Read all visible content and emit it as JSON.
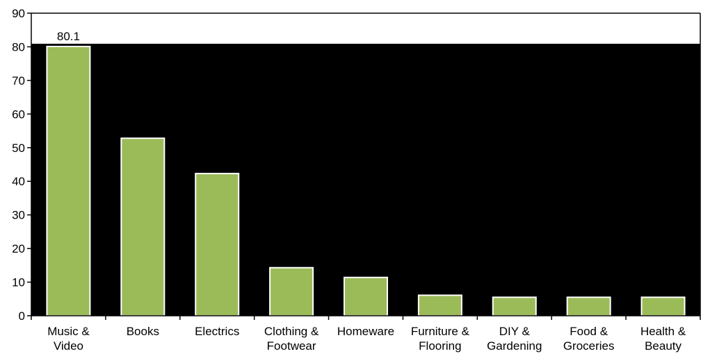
{
  "chart_data": {
    "type": "bar",
    "categories": [
      [
        "Music &",
        "Video"
      ],
      [
        "Books"
      ],
      [
        "Electrics"
      ],
      [
        "Clothing &",
        "Footwear"
      ],
      [
        "Homeware"
      ],
      [
        "Furniture &",
        "Flooring"
      ],
      [
        "DIY &",
        "Gardening"
      ],
      [
        "Food &",
        "Groceries"
      ],
      [
        "Health &",
        "Beauty"
      ]
    ],
    "values": [
      80.1,
      52.8,
      42.3,
      14.3,
      11.4,
      6.1,
      5.5,
      5.5,
      5.5
    ],
    "data_labels": [
      "80.1",
      "",
      "",
      "",
      "",
      "",
      "",
      "",
      ""
    ],
    "ylim": [
      0,
      90
    ],
    "yticks": [
      "0",
      "10",
      "20",
      "30",
      "40",
      "50",
      "60",
      "70",
      "80",
      "90"
    ],
    "colors": {
      "bar": "#9bbb59",
      "bar_outline": "#ffffff",
      "plot_area": "#000000",
      "axis": "#000000"
    },
    "grid": false,
    "legend": "none",
    "title": "",
    "xlabel": "",
    "ylabel": ""
  }
}
